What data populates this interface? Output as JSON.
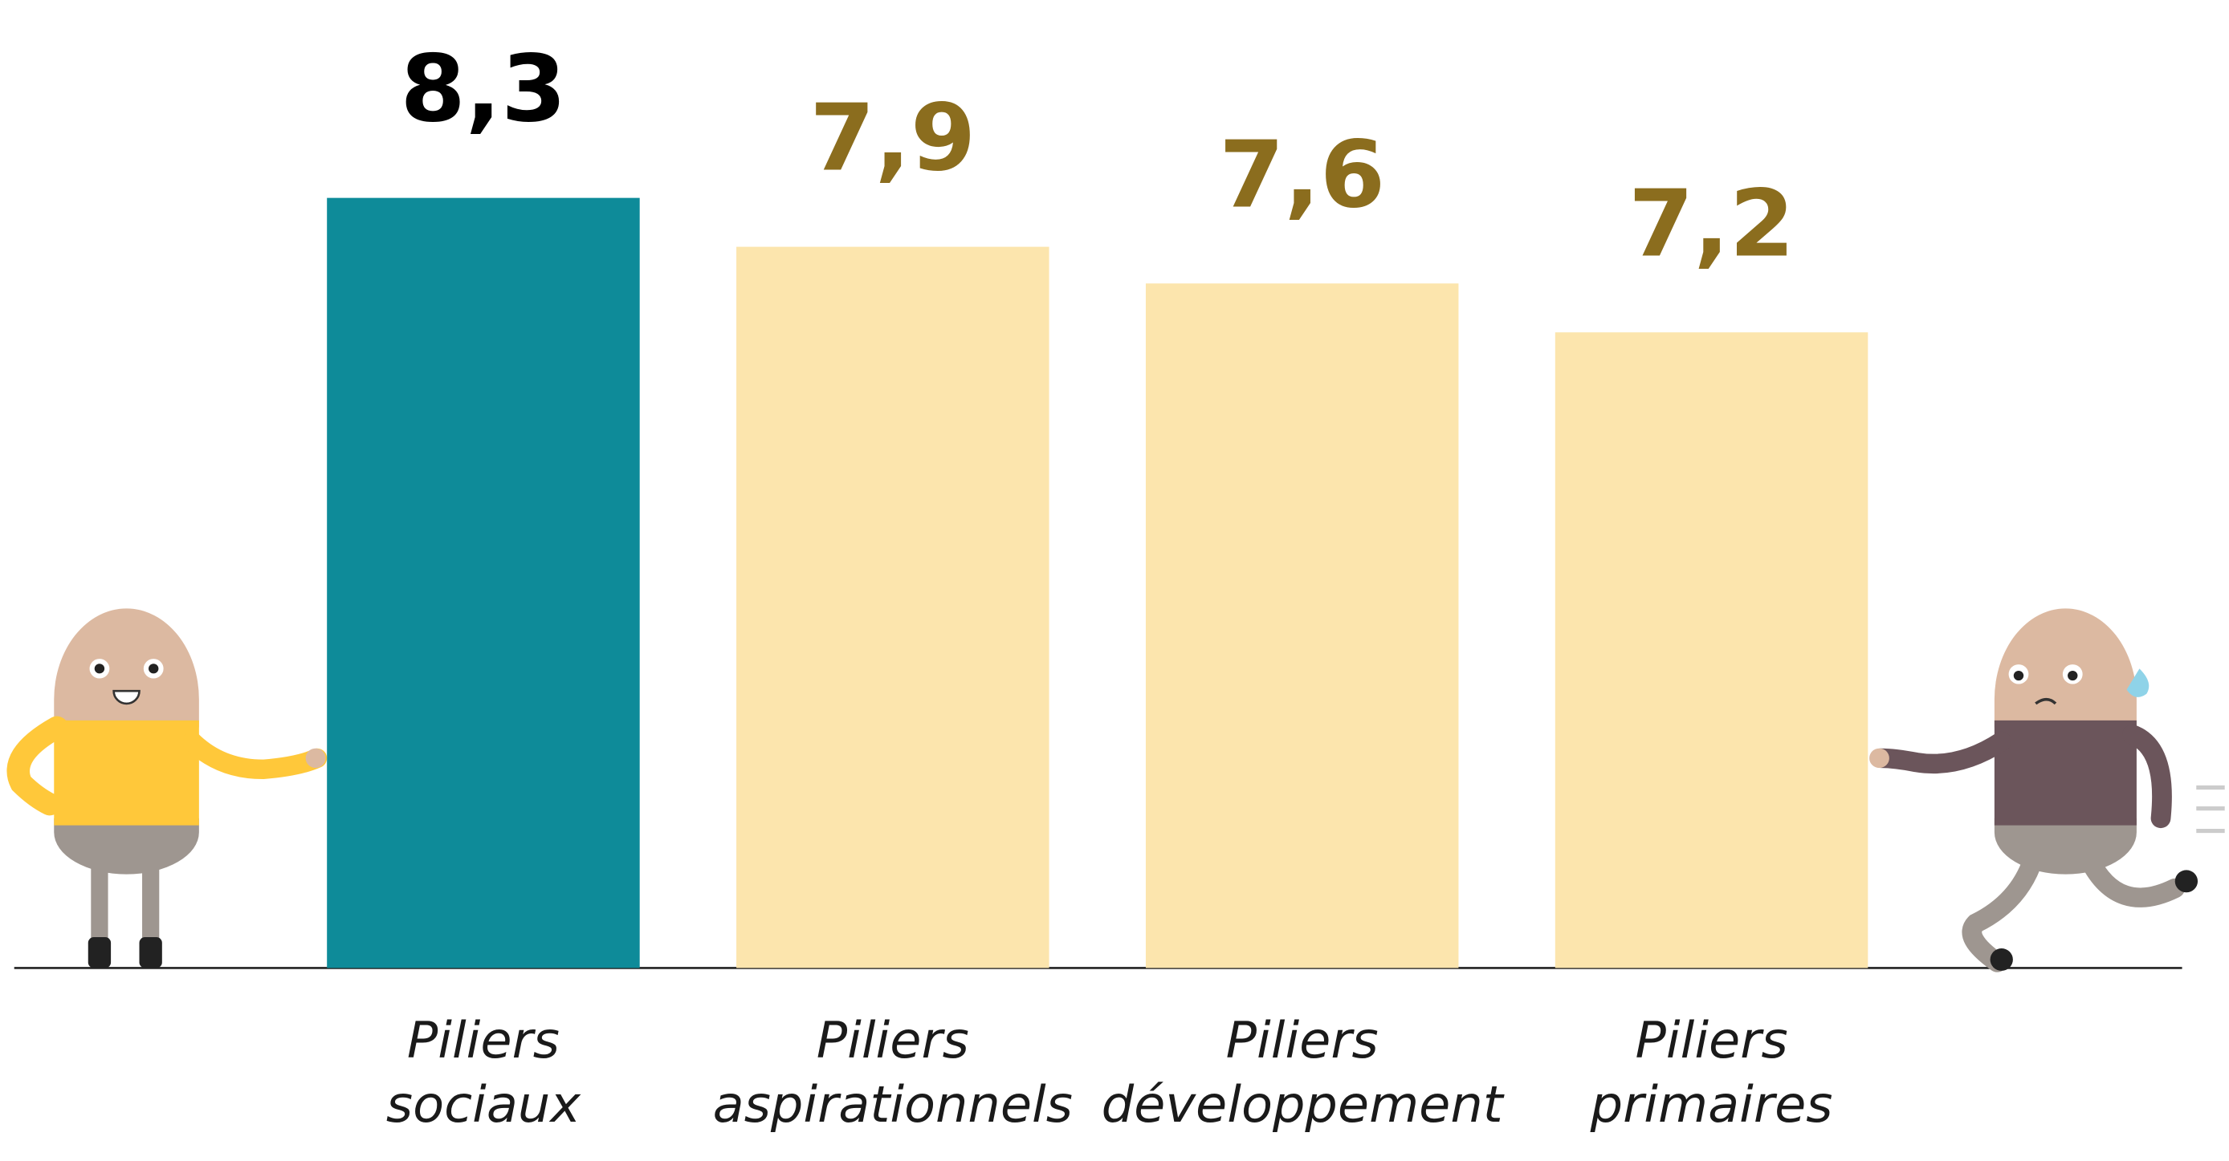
{
  "chart_data": {
    "type": "bar",
    "categories": [
      "Piliers sociaux",
      "Piliers aspirationnels",
      "Piliers développement",
      "Piliers primaires"
    ],
    "values": [
      8.3,
      7.9,
      7.6,
      7.2
    ],
    "value_labels": [
      "8,3",
      "7,9",
      "7,6",
      "7,2"
    ],
    "colors": [
      "#0e8b99",
      "#fce5ad",
      "#fce5ad",
      "#fce5ad"
    ],
    "label_colors": [
      "#000000",
      "#8b6d1e",
      "#8b6d1e",
      "#8b6d1e"
    ],
    "ylim": [
      2,
      8.5
    ]
  }
}
